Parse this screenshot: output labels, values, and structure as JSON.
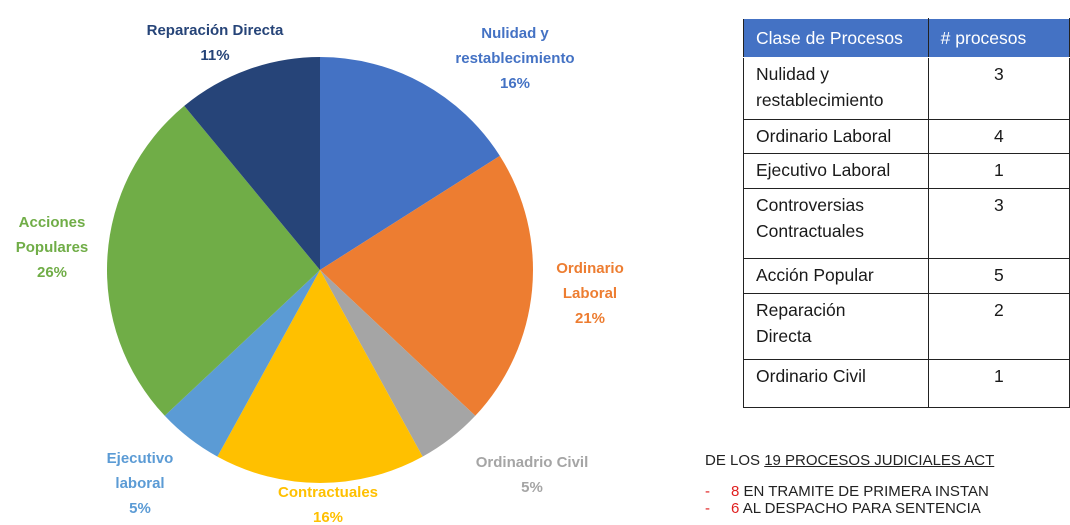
{
  "chart_data": {
    "type": "pie",
    "categories": [
      "Nulidad y\nrestablecimiento",
      "Ordinario\nLaboral",
      "Ordinadrio  Civil",
      "Contractuales",
      "Ejecutivo\nlaboral",
      "Acciones\nPopulares",
      "Reparación Directa"
    ],
    "values": [
      16,
      21,
      5,
      16,
      5,
      26,
      11
    ],
    "value_labels": [
      "16%",
      "21%",
      "5%",
      "16%",
      "5%",
      "26%",
      "11%"
    ],
    "colors": [
      "#4472c4",
      "#ed7d31",
      "#a5a5a5",
      "#ffc000",
      "#5b9bd5",
      "#70ad47",
      "#264478"
    ]
  },
  "table": {
    "header": [
      "Clase de Procesos",
      "# procesos"
    ],
    "rows": [
      [
        "Nulidad y\nrestablecimiento",
        "3"
      ],
      [
        "Ordinario Laboral",
        "4"
      ],
      [
        "Ejecutivo Laboral",
        "1"
      ],
      [
        "Controversias\nContractuales",
        "3"
      ],
      [
        "Acción Popular",
        "5"
      ],
      [
        "Reparación\nDirecta",
        "2"
      ],
      [
        "Ordinario Civil",
        "1"
      ]
    ]
  },
  "summary": {
    "lead": "DE LOS",
    "lead_underlined": "19 PROCESOS JUDICIALES ACT",
    "items": [
      {
        "count": "8",
        "text": "EN TRAMITE DE PRIMERA INSTAN"
      },
      {
        "count": "6",
        "text": "AL DESPACHO PARA SENTENCIA"
      }
    ]
  }
}
